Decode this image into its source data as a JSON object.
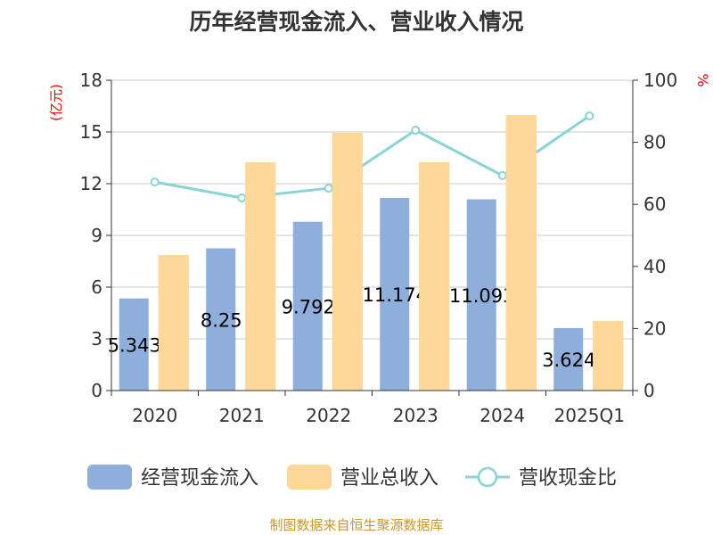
{
  "chart_data": {
    "type": "bar",
    "title": "历年经营现金流入、营业收入情况",
    "categories": [
      "2020",
      "2021",
      "2022",
      "2023",
      "2024",
      "2025Q1"
    ],
    "ylabel_left": "(亿元)",
    "ylabel_right": "%",
    "ylim_left": [
      0,
      18
    ],
    "yticks_left": [
      0,
      3,
      6,
      9,
      12,
      15,
      18
    ],
    "ylim_right": [
      0,
      100
    ],
    "yticks_right": [
      0,
      20,
      40,
      60,
      80,
      100
    ],
    "grid": true,
    "legend_position": "bottom",
    "series": [
      {
        "name": "经营现金流入",
        "type": "bar",
        "color": "#8eaedb",
        "values": [
          5.343,
          8.25,
          9.792,
          11.174,
          11.093,
          3.624
        ],
        "labels": [
          "5.343",
          "8.25",
          "9.792",
          "11.174",
          "11.093",
          "3.624"
        ]
      },
      {
        "name": "营业总收入",
        "type": "bar",
        "color": "#fed899",
        "values": [
          7.86,
          13.24,
          14.95,
          13.24,
          15.98,
          4.03
        ]
      },
      {
        "name": "营收现金比",
        "type": "line",
        "axis": "right",
        "color": "#88d4d6",
        "values": [
          67.2,
          62.1,
          65.2,
          83.9,
          69.3,
          88.5
        ]
      }
    ]
  },
  "footer": "制图数据来自恒生聚源数据库"
}
